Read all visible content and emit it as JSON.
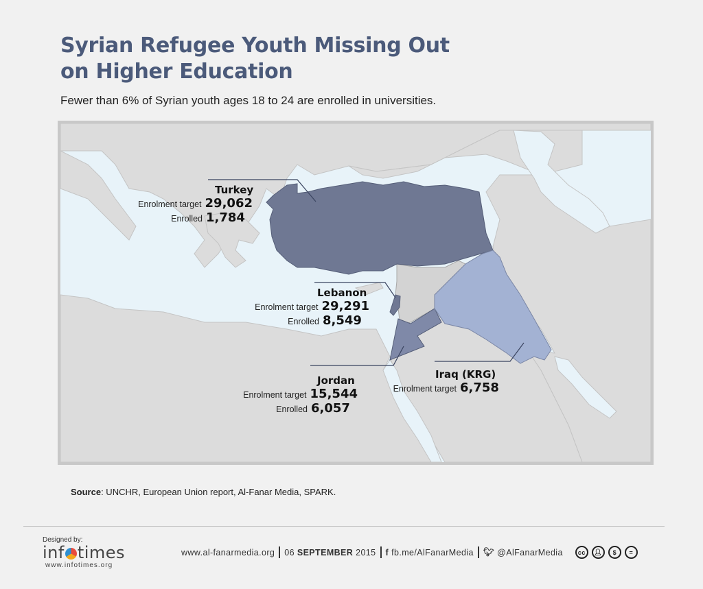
{
  "title_line1": "Syrian Refugee Youth Missing Out",
  "title_line2": "on Higher Education",
  "subtitle": "Fewer than 6% of Syrian youth ages 18 to 24 are enrolled in universities.",
  "regions": {
    "turkey": {
      "name": "Turkey",
      "target_label": "Enrolment target",
      "target": "29,062",
      "enrolled_label": "Enrolled",
      "enrolled": "1,784"
    },
    "lebanon": {
      "name": "Lebanon",
      "target_label": "Enrolment target",
      "target": "29,291",
      "enrolled_label": "Enrolled",
      "enrolled": "8,549"
    },
    "jordan": {
      "name": "Jordan",
      "target_label": "Enrolment target",
      "target": "15,544",
      "enrolled_label": "Enrolled",
      "enrolled": "6,057"
    },
    "iraq": {
      "name": "Iraq (KRG)",
      "target_label": "Enrolment target",
      "target": "6,758"
    }
  },
  "colors": {
    "turkey": "#6f7893",
    "jordan": "#7f89a8",
    "lebanon": "#6f7893",
    "iraq": "#a3b2d3",
    "syria": "#d3d3d3",
    "land": "#dcdcdc",
    "sea": "#e8f3f9",
    "title": "#4b5a7a"
  },
  "source_label": "Source",
  "source_text": ": UNCHR, European Union report, Al-Fanar Media, SPARK.",
  "footer": {
    "designed_by": "Designed by:",
    "logo_part1": "inf",
    "logo_part2": "times",
    "logo_url": "www.infotimes.org",
    "website": "www.al-fanarmedia.org",
    "date_day": "06",
    "date_rest": "SEPTEMBER",
    "date_year": "2015",
    "facebook": "fb.me/AlFanarMedia",
    "twitter": "@AlFanarMedia",
    "cc_icons": [
      "cc-icon",
      "by-icon",
      "nc-icon",
      "nd-icon"
    ]
  }
}
